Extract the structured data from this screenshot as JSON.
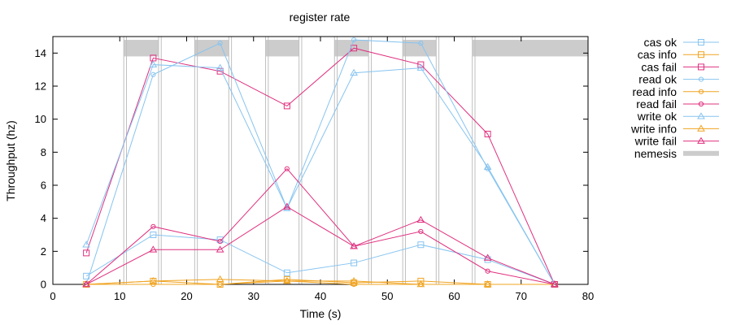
{
  "chart_data": {
    "type": "line",
    "title": "register rate",
    "xlabel": "Time (s)",
    "ylabel": "Throughput (hz)",
    "xlim": [
      0,
      80
    ],
    "ylim": [
      0,
      15
    ],
    "xticks": [
      0,
      10,
      20,
      30,
      40,
      50,
      60,
      70,
      80
    ],
    "yticks": [
      0,
      2,
      4,
      6,
      8,
      10,
      12,
      14
    ],
    "grid": false,
    "legend_position": "outside-right",
    "x": [
      5,
      15,
      25,
      35,
      45,
      55,
      65,
      75
    ],
    "series": [
      {
        "name": "cas ok",
        "color": "#87c4f0",
        "marker": "square",
        "values": [
          0.5,
          3.0,
          2.7,
          0.7,
          1.3,
          2.4,
          1.5,
          0
        ]
      },
      {
        "name": "cas info",
        "color": "#f0a422",
        "marker": "square",
        "values": [
          0,
          0.2,
          0,
          0.3,
          0.1,
          0.2,
          0,
          0
        ]
      },
      {
        "name": "cas fail",
        "color": "#e0307f",
        "marker": "square",
        "values": [
          1.9,
          13.7,
          12.9,
          10.8,
          14.3,
          13.3,
          9.1,
          0
        ]
      },
      {
        "name": "read ok",
        "color": "#87c4f0",
        "marker": "circle",
        "values": [
          0,
          12.7,
          14.6,
          4.6,
          14.8,
          14.6,
          7.0,
          0
        ]
      },
      {
        "name": "read info",
        "color": "#f0a422",
        "marker": "circle",
        "values": [
          0,
          0,
          0,
          0.2,
          0,
          0,
          0,
          0
        ]
      },
      {
        "name": "read fail",
        "color": "#e0307f",
        "marker": "circle",
        "values": [
          0,
          3.5,
          2.6,
          7.0,
          2.3,
          3.2,
          0.8,
          0
        ]
      },
      {
        "name": "write ok",
        "color": "#87c4f0",
        "marker": "triangle",
        "values": [
          2.4,
          13.3,
          13.1,
          4.6,
          12.8,
          13.1,
          7.1,
          0
        ]
      },
      {
        "name": "write info",
        "color": "#f0a422",
        "marker": "triangle",
        "values": [
          0,
          0.2,
          0.3,
          0.2,
          0.2,
          0,
          0,
          0
        ]
      },
      {
        "name": "write fail",
        "color": "#e0307f",
        "marker": "triangle",
        "values": [
          0,
          2.1,
          2.1,
          4.7,
          2.3,
          3.9,
          1.6,
          0
        ]
      }
    ],
    "nemesis": {
      "name": "nemesis",
      "color": "#cccccc",
      "y_band": [
        13.8,
        14.8
      ],
      "intervals": [
        [
          10.6,
          15.8
        ],
        [
          21.2,
          26.3
        ],
        [
          31.8,
          36.8
        ],
        [
          42.1,
          47.2
        ],
        [
          52.3,
          57.3
        ],
        [
          62.7,
          80
        ]
      ],
      "line_color": "#bfbfbf",
      "lines": [
        10.6,
        11.0,
        15.8,
        16.2,
        21.2,
        21.6,
        26.3,
        26.7,
        31.8,
        32.2,
        36.8,
        37.2,
        42.1,
        42.5,
        47.2,
        47.6,
        52.3,
        52.7,
        57.3,
        57.7,
        62.7,
        63.1
      ]
    }
  }
}
